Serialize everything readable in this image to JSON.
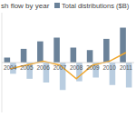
{
  "chart_data": {
    "type": "bar",
    "title": "sh flow by year",
    "categories": [
      "2004",
      "2005",
      "2006",
      "2007",
      "2008",
      "2009",
      "2010",
      "2011"
    ],
    "series": [
      {
        "name": "Total distributions ($B)",
        "color": "#6b8299",
        "values": [
          4,
          11,
          17,
          20,
          12,
          10,
          19,
          28
        ]
      },
      {
        "color": "#b9cde0",
        "values": [
          -9,
          -13,
          -16,
          -22,
          -15,
          -12,
          -18,
          -20
        ]
      },
      {
        "type": "line",
        "color": "#f0a830",
        "values": [
          -5,
          -2,
          1,
          -2,
          -13,
          -2,
          1,
          8
        ]
      }
    ],
    "ylim": [
      -40,
      40
    ],
    "tick_labels": "x"
  }
}
